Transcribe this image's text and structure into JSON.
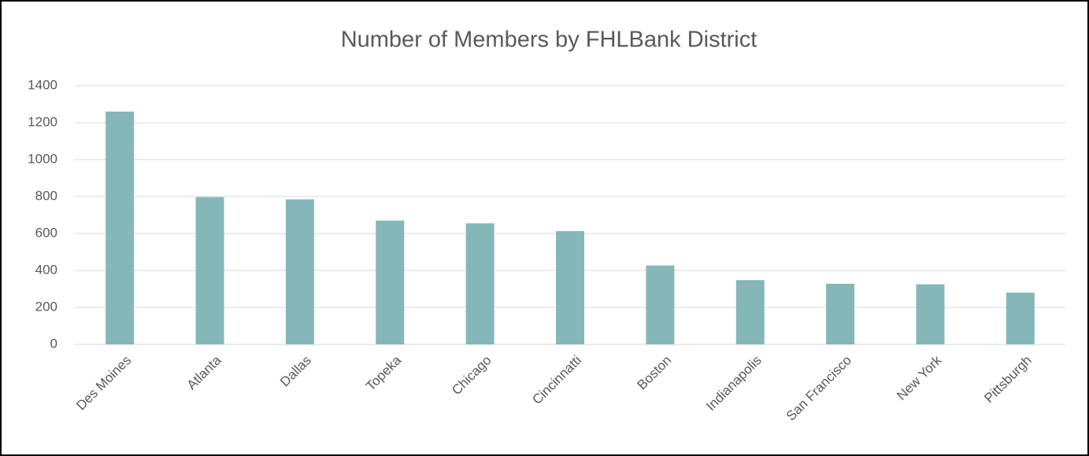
{
  "chart_data": {
    "type": "bar",
    "title": "Number of Members by FHLBank District",
    "categories": [
      "Des Moines",
      "Atlanta",
      "Dallas",
      "Topeka",
      "Chicago",
      "Cincinnatti",
      "Boston",
      "Indianapolis",
      "San Francisco",
      "New York",
      "Pittsburgh"
    ],
    "values": [
      1260,
      797,
      785,
      670,
      655,
      613,
      427,
      348,
      328,
      325,
      280
    ],
    "color": "#86b7b8",
    "ylim": [
      0,
      1400
    ],
    "yticks": [
      0,
      200,
      400,
      600,
      800,
      1000,
      1200,
      1400
    ],
    "grid": true
  }
}
